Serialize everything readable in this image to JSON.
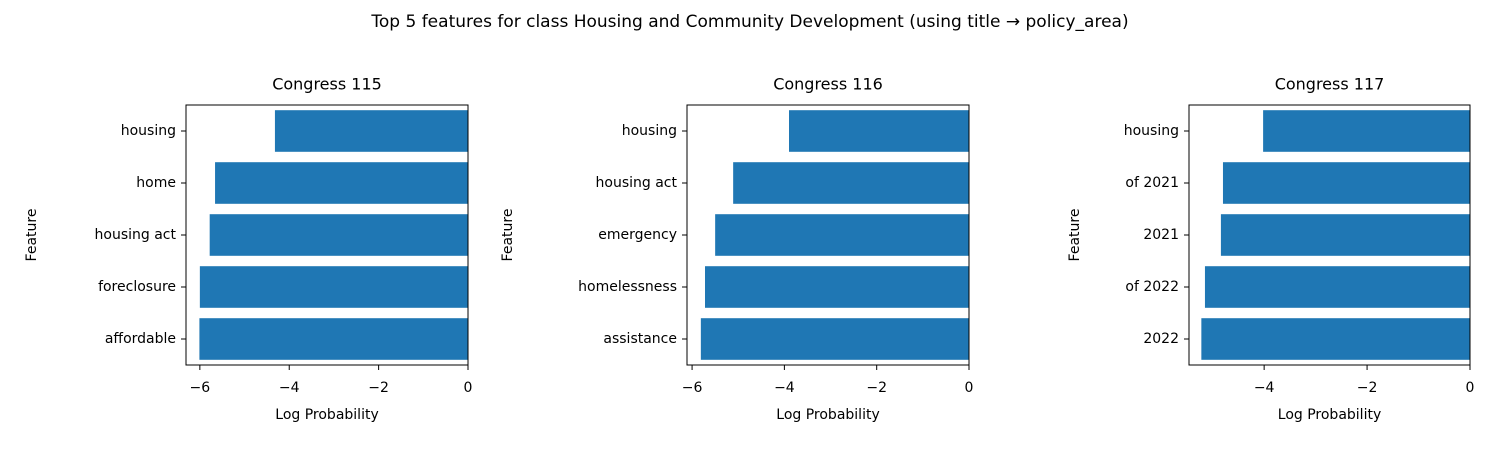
{
  "title": "Top 5 features for class Housing and Community Development (using title → policy_area)",
  "chart_data": [
    {
      "type": "bar",
      "orientation": "horizontal",
      "title": "Congress 115",
      "xlabel": "Log Probability",
      "ylabel": "Feature",
      "categories": [
        "housing",
        "home",
        "housing act",
        "foreclosure",
        "affordable"
      ],
      "values": [
        -4.32,
        -5.66,
        -5.78,
        -6.0,
        -6.01
      ],
      "color": "#1f77b4",
      "xlim": [
        -6.31,
        0
      ],
      "xticks": [
        {
          "value": -6,
          "label": "−6"
        },
        {
          "value": -4,
          "label": "−4"
        },
        {
          "value": -2,
          "label": "−2"
        },
        0
      ]
    },
    {
      "type": "bar",
      "orientation": "horizontal",
      "title": "Congress 116",
      "xlabel": "Log Probability",
      "ylabel": "Feature",
      "categories": [
        "housing",
        "housing act",
        "emergency",
        "homelessness",
        "assistance"
      ],
      "values": [
        -3.9,
        -5.11,
        -5.5,
        -5.72,
        -5.81
      ],
      "color": "#1f77b4",
      "xlim": [
        -6.11,
        0
      ],
      "xticks": [
        {
          "value": -6,
          "label": "−6"
        },
        {
          "value": -4,
          "label": "−4"
        },
        {
          "value": -2,
          "label": "−2"
        },
        0
      ]
    },
    {
      "type": "bar",
      "orientation": "horizontal",
      "title": "Congress 117",
      "xlabel": "Log Probability",
      "ylabel": "Feature",
      "categories": [
        "housing",
        "of 2021",
        "2021",
        "of 2022",
        "2022"
      ],
      "values": [
        -4.02,
        -4.8,
        -4.84,
        -5.15,
        -5.22
      ],
      "color": "#1f77b4",
      "xlim": [
        -5.46,
        0
      ],
      "xticks": [
        {
          "value": -4,
          "label": "−4"
        },
        {
          "value": -2,
          "label": "−2"
        },
        0
      ]
    }
  ]
}
